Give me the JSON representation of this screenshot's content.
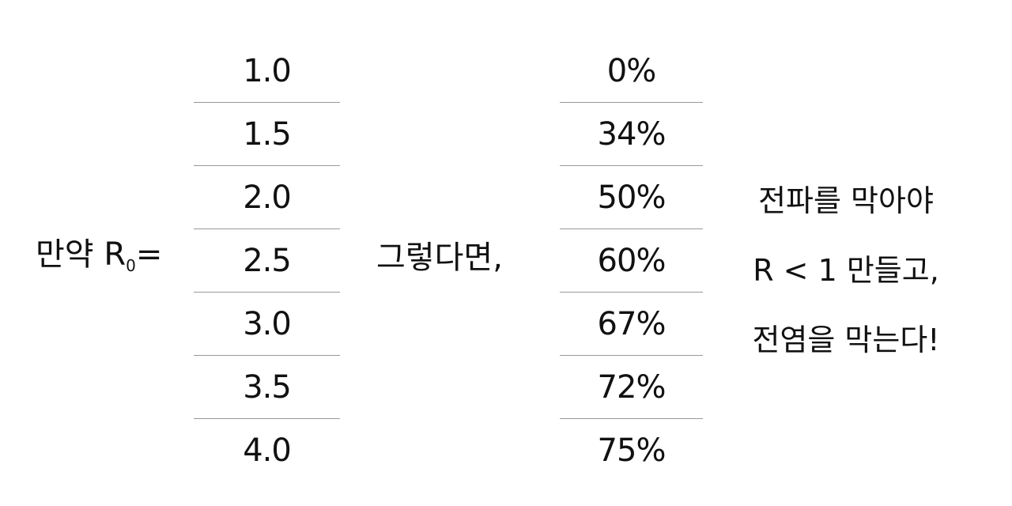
{
  "if_label": {
    "prefix": "만약 R",
    "subscript": "0",
    "suffix": "="
  },
  "r0_values": [
    "1.0",
    "1.5",
    "2.0",
    "2.5",
    "3.0",
    "3.5",
    "4.0"
  ],
  "then_label": "그렇다면,",
  "percent_values": [
    "0%",
    "34%",
    "50%",
    "60%",
    "67%",
    "72%",
    "75%"
  ],
  "conclusion": {
    "line1": "전파를 막아야",
    "line2": "R < 1 만들고,",
    "line3": "전염을 막는다!"
  }
}
